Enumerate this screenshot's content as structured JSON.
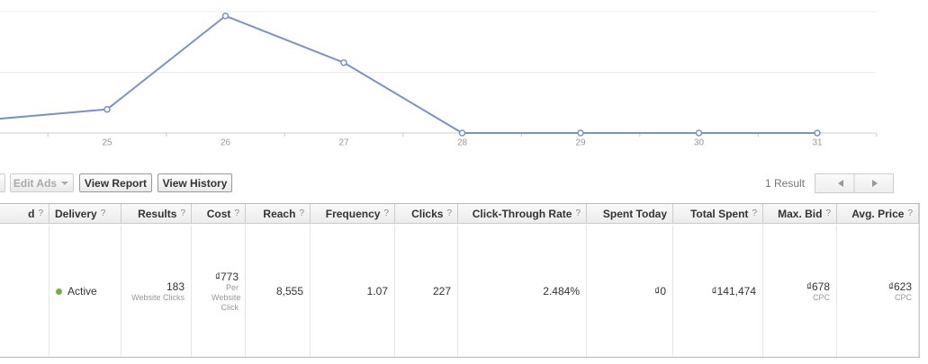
{
  "chart_data": {
    "type": "line",
    "categories": [
      null,
      "25",
      "26",
      "27",
      "28",
      "29",
      "30",
      "31"
    ],
    "values": [
      0.22,
      0.39,
      1.93,
      1.16,
      0,
      0,
      0,
      0
    ],
    "color": "#7b93c0",
    "ylim": [
      0,
      2
    ],
    "yticks": [
      0,
      1,
      2
    ],
    "grid": true
  },
  "toolbar": {
    "buttons": [
      "Edit Ads",
      "View Report",
      "View History"
    ],
    "result_count": "1 Result"
  },
  "table": {
    "headers": [
      {
        "label": "d",
        "help": "?"
      },
      {
        "label": "Delivery",
        "help": "?"
      },
      {
        "label": "Results",
        "help": "?"
      },
      {
        "label": "Cost",
        "help": "?"
      },
      {
        "label": "Reach",
        "help": "?"
      },
      {
        "label": "Frequency",
        "help": "?"
      },
      {
        "label": "Clicks",
        "help": "?"
      },
      {
        "label": "Click-Through Rate",
        "help": "?"
      },
      {
        "label": "Spent Today"
      },
      {
        "label": "Total Spent",
        "help": "?"
      },
      {
        "label": "Max. Bid",
        "help": "?"
      },
      {
        "label": "Avg. Price",
        "help": "?"
      }
    ],
    "rows": [
      [
        null,
        {
          "text": "Active"
        },
        {
          "text": "183",
          "sub": "Website Clicks"
        },
        {
          "text": "₫773",
          "sub": "Per Website Click"
        },
        {
          "text": "8,555"
        },
        {
          "text": "1.07"
        },
        {
          "text": "227"
        },
        {
          "text": "2.484%"
        },
        {
          "text": "₫0"
        },
        {
          "text": "₫141,474"
        },
        {
          "text": "₫678",
          "sub": "CPC"
        },
        {
          "text": "₫623",
          "sub": "CPC"
        }
      ]
    ]
  }
}
